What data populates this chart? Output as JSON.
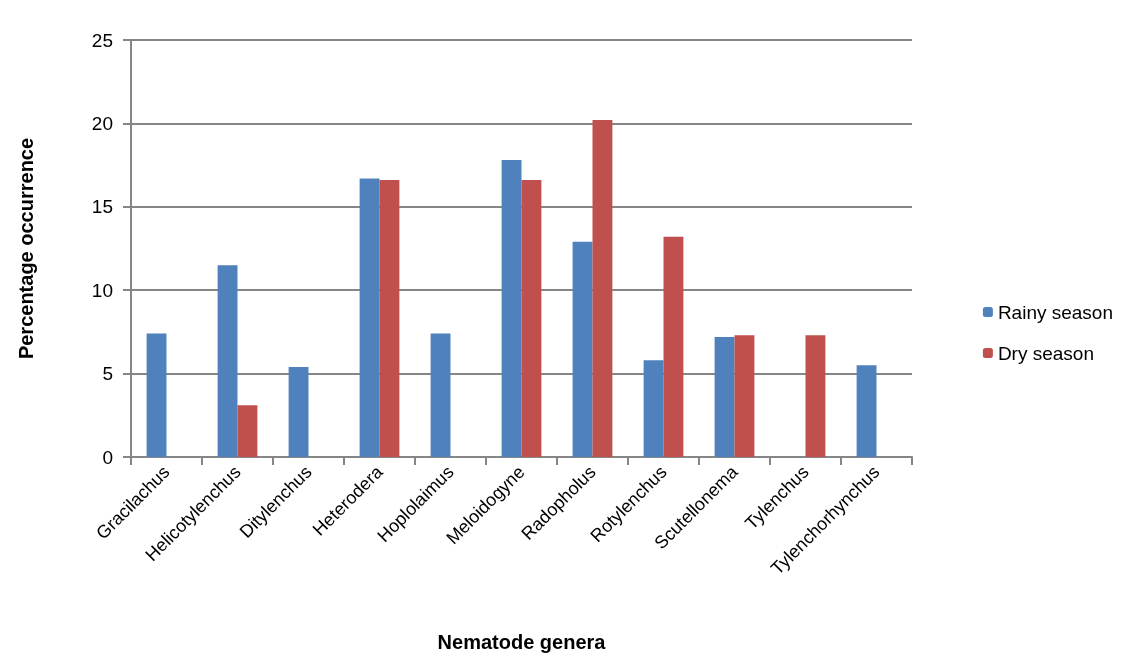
{
  "chart_data": {
    "type": "bar",
    "xlabel": "Nematode genera",
    "ylabel": "Percentage occurrence",
    "categories": [
      "Gracilachus",
      "Helicotylenchus",
      "Ditylenchus",
      "Heterodera",
      "Hoplolaimus",
      "Meloidogyne",
      "Radopholus",
      "Rotylenchus",
      "Scutellonema",
      "Tylenchus",
      "Tylenchorhynchus"
    ],
    "series": [
      {
        "name": "Rainy season",
        "color": "#4f81bd",
        "values": [
          7.4,
          11.5,
          5.4,
          16.7,
          7.4,
          17.8,
          12.9,
          5.8,
          7.2,
          null,
          5.5
        ]
      },
      {
        "name": "Dry season",
        "color": "#c0504d",
        "values": [
          null,
          3.1,
          null,
          16.6,
          null,
          16.6,
          20.2,
          13.2,
          7.3,
          7.3,
          null
        ]
      }
    ],
    "ylim": [
      0,
      25
    ],
    "yticks": [
      0,
      5,
      10,
      15,
      20,
      25
    ],
    "grid": "y",
    "legend": "right"
  }
}
